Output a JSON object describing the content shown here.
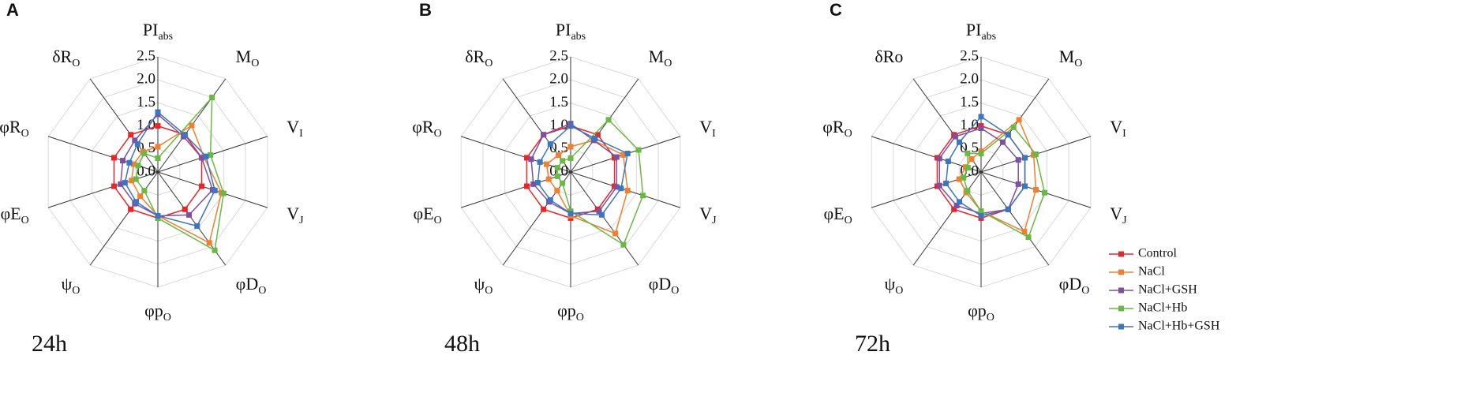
{
  "chart_data": [
    {
      "type": "radar",
      "panel": "A",
      "label": "24h",
      "axes": [
        {
          "main": "PI",
          "sub": "abs"
        },
        {
          "main": "M",
          "sub": "O"
        },
        {
          "main": "V",
          "sub": "I"
        },
        {
          "main": "V",
          "sub": "J"
        },
        {
          "main": "φD",
          "sub": "O"
        },
        {
          "main": "φp",
          "sub": "O"
        },
        {
          "main": "ψ",
          "sub": "O"
        },
        {
          "main": "φE",
          "sub": "O"
        },
        {
          "main": "φR",
          "sub": "O"
        },
        {
          "main": "δR",
          "sub": "O"
        }
      ],
      "rlim": [
        0,
        2.5
      ],
      "rticks": [
        {
          "value": 0,
          "label": "0.0"
        },
        0.5,
        {
          "value": 1,
          "label": "1.0"
        },
        1.5,
        {
          "value": 2,
          "label": "2.0"
        },
        2.5
      ],
      "series": [
        {
          "color": "#e8262a",
          "values": [
            1,
            1,
            1,
            1,
            1,
            1,
            1,
            1,
            1,
            1
          ]
        },
        {
          "color": "#f07f30",
          "values": [
            0.55,
            1.25,
            1.05,
            1.45,
            1.9,
            0.95,
            0.65,
            0.6,
            0.55,
            0.55
          ]
        },
        {
          "color": "#7f4fa0",
          "values": [
            1.25,
            0.95,
            1.0,
            1.25,
            1.15,
            0.95,
            0.85,
            0.85,
            0.8,
            0.85
          ]
        },
        {
          "color": "#6ab944",
          "values": [
            0.3,
            2.0,
            1.2,
            1.5,
            2.1,
            1.0,
            0.5,
            0.5,
            0.45,
            0.5
          ]
        },
        {
          "color": "#3b76c0",
          "values": [
            1.3,
            1.0,
            1.1,
            1.3,
            1.45,
            0.95,
            0.8,
            0.75,
            0.65,
            0.75
          ]
        }
      ]
    },
    {
      "type": "radar",
      "panel": "B",
      "label": "48h",
      "axes": [
        {
          "main": "PI",
          "sub": "abs"
        },
        {
          "main": "M",
          "sub": "O"
        },
        {
          "main": "V",
          "sub": "I"
        },
        {
          "main": "V",
          "sub": "J"
        },
        {
          "main": "φD",
          "sub": "O"
        },
        {
          "main": "φp",
          "sub": "O"
        },
        {
          "main": "ψ",
          "sub": "O"
        },
        {
          "main": "φE",
          "sub": "O"
        },
        {
          "main": "φR",
          "sub": "O"
        },
        {
          "main": "δR",
          "sub": "O"
        }
      ],
      "rlim": [
        0,
        2.5
      ],
      "rticks": [
        {
          "value": 0,
          "label": "0.0"
        },
        0.5,
        {
          "value": 1,
          "label": "1.0"
        },
        1.5,
        {
          "value": 2,
          "label": "2.0"
        },
        2.5
      ],
      "series": [
        {
          "color": "#e8262a",
          "values": [
            1,
            1,
            1,
            1,
            1,
            1,
            1,
            1,
            1,
            1
          ]
        },
        {
          "color": "#f07f30",
          "values": [
            0.55,
            0.85,
            1.2,
            1.3,
            1.65,
            0.95,
            0.5,
            0.5,
            0.55,
            0.45
          ]
        },
        {
          "color": "#7f4fa0",
          "values": [
            1.05,
            0.85,
            1.05,
            1.05,
            1.05,
            0.9,
            0.8,
            0.85,
            0.9,
            1.0
          ]
        },
        {
          "color": "#6ab944",
          "values": [
            0.3,
            1.4,
            1.55,
            1.65,
            1.95,
            0.85,
            0.3,
            0.3,
            0.3,
            0.3
          ]
        },
        {
          "color": "#3b76c0",
          "values": [
            1.0,
            0.9,
            1.3,
            1.15,
            1.15,
            0.9,
            0.75,
            0.75,
            0.7,
            0.75
          ]
        }
      ]
    },
    {
      "type": "radar",
      "panel": "C",
      "label": "72h",
      "axes": [
        {
          "main": "PI",
          "sub": "abs"
        },
        {
          "main": "M",
          "sub": "O"
        },
        {
          "main": "V",
          "sub": "I"
        },
        {
          "main": "V",
          "sub": "J"
        },
        {
          "main": "φD",
          "sub": "O"
        },
        {
          "main": "φp",
          "sub": "O"
        },
        {
          "main": "ψ",
          "sub": "O"
        },
        {
          "main": "φE",
          "sub": "O"
        },
        {
          "main": "φR",
          "sub": "O"
        },
        {
          "main": "δRo"
        }
      ],
      "rlim": [
        0,
        2.5
      ],
      "rticks": [
        {
          "value": 0,
          "label": "0.0"
        },
        0.5,
        {
          "value": 1,
          "label": "1.0"
        },
        1.5,
        {
          "value": 2,
          "label": "2.0"
        },
        2.5
      ],
      "series": [
        {
          "name": "Control",
          "color": "#e8262a",
          "values": [
            1,
            1,
            1,
            1,
            1,
            1,
            1,
            1,
            1,
            1
          ]
        },
        {
          "name": "NaCl",
          "color": "#f07f30",
          "values": [
            0.45,
            1.4,
            1.2,
            1.25,
            1.6,
            0.85,
            0.55,
            0.5,
            0.35,
            0.35
          ]
        },
        {
          "name": "NaCl+GSH",
          "color": "#7f4fa0",
          "values": [
            0.95,
            0.8,
            0.85,
            0.85,
            1.0,
            0.9,
            0.9,
            0.95,
            0.95,
            0.95
          ]
        },
        {
          "name": "NaCl+Hb",
          "color": "#6ab944",
          "values": [
            0.4,
            1.2,
            1.25,
            1.45,
            1.75,
            0.85,
            0.5,
            0.4,
            0.3,
            0.5
          ]
        },
        {
          "name": "NaCl+Hb+GSH",
          "color": "#3b76c0",
          "values": [
            1.2,
            1.0,
            1.0,
            1.0,
            1.0,
            0.95,
            0.8,
            0.8,
            0.75,
            0.8
          ]
        }
      ]
    }
  ]
}
